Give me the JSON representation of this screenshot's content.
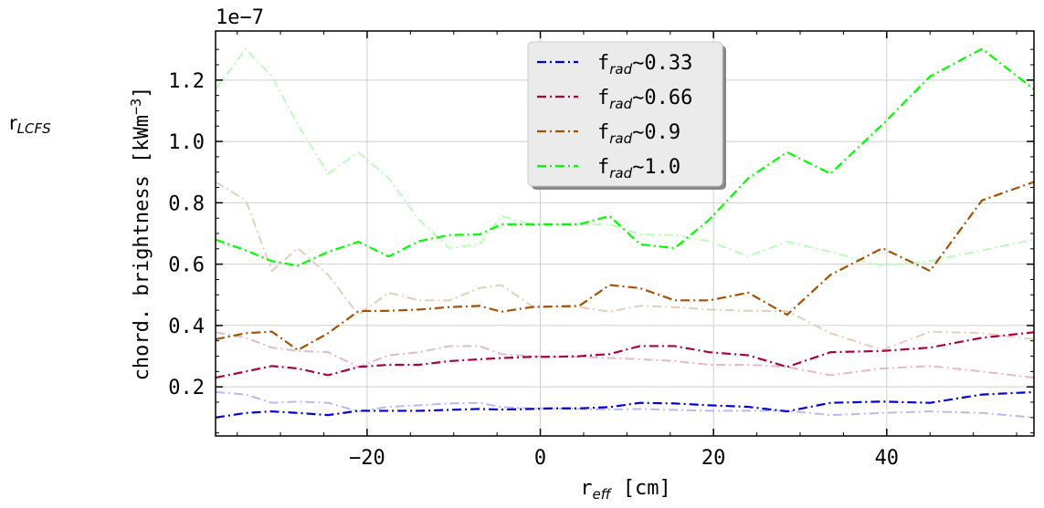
{
  "chart_data": {
    "type": "line",
    "side_label": {
      "base": "r",
      "sub": "LCFS"
    },
    "offset_text": "1e−7",
    "xlabel": {
      "base": "r",
      "sub": "eff",
      "rest": " [cm]"
    },
    "ylabel": {
      "base": "chord. brightness [kWm",
      "sup": "−3",
      "rest": "]"
    },
    "xlim": [
      -37.5,
      57
    ],
    "ylim": [
      0.04,
      1.36
    ],
    "x_ticks": [
      -20,
      0,
      20,
      40
    ],
    "x_tick_labels": [
      "−20",
      "0",
      "20",
      "40"
    ],
    "y_ticks": [
      0.2,
      0.4,
      0.6,
      0.8,
      1.0,
      1.2
    ],
    "y_tick_labels": [
      "0.2",
      "0.4",
      "0.6",
      "0.8",
      "1.0",
      "1.2"
    ],
    "grid": true,
    "legend_position": "top-center",
    "x": [
      -37.5,
      -34,
      -31,
      -28,
      -24.5,
      -21,
      -17.5,
      -14,
      -10.5,
      -7,
      -4.5,
      -1,
      1.5,
      4.5,
      8,
      11.5,
      15.5,
      19.5,
      24,
      28.5,
      33.5,
      39.5,
      45,
      51,
      57
    ],
    "series": [
      {
        "name": "0.33",
        "legend": {
          "base": "f",
          "sub": "rad",
          "rest": "∼0.33"
        },
        "color": "#0000dd",
        "values": [
          0.1,
          0.115,
          0.12,
          0.115,
          0.108,
          0.122,
          0.122,
          0.122,
          0.125,
          0.128,
          0.126,
          0.128,
          0.13,
          0.13,
          0.134,
          0.148,
          0.146,
          0.14,
          0.135,
          0.12,
          0.148,
          0.152,
          0.148,
          0.175,
          0.183
        ]
      },
      {
        "name": "0.66",
        "legend": {
          "base": "f",
          "sub": "rad",
          "rest": "∼0.66"
        },
        "color": "#aa0044",
        "values": [
          0.23,
          0.25,
          0.268,
          0.26,
          0.238,
          0.265,
          0.272,
          0.272,
          0.284,
          0.29,
          0.294,
          0.298,
          0.298,
          0.3,
          0.307,
          0.333,
          0.333,
          0.313,
          0.303,
          0.265,
          0.313,
          0.317,
          0.328,
          0.36,
          0.378
        ]
      },
      {
        "name": "0.9",
        "legend": {
          "base": "f",
          "sub": "rad",
          "rest": "∼0.9"
        },
        "color": "#a85000",
        "values": [
          0.355,
          0.375,
          0.38,
          0.32,
          0.375,
          0.447,
          0.448,
          0.452,
          0.46,
          0.464,
          0.445,
          0.46,
          0.462,
          0.464,
          0.532,
          0.522,
          0.482,
          0.482,
          0.507,
          0.435,
          0.565,
          0.652,
          0.578,
          0.808,
          0.868
        ]
      },
      {
        "name": "1.0",
        "legend": {
          "base": "f",
          "sub": "rad",
          "rest": "∼1.0"
        },
        "color": "#00ff00",
        "values": [
          0.68,
          0.645,
          0.61,
          0.595,
          0.64,
          0.673,
          0.625,
          0.675,
          0.695,
          0.697,
          0.73,
          0.73,
          0.73,
          0.73,
          0.757,
          0.665,
          0.652,
          0.745,
          0.88,
          0.965,
          0.895,
          1.055,
          1.212,
          1.302,
          1.17
        ]
      }
    ],
    "mirror_series": true
  }
}
